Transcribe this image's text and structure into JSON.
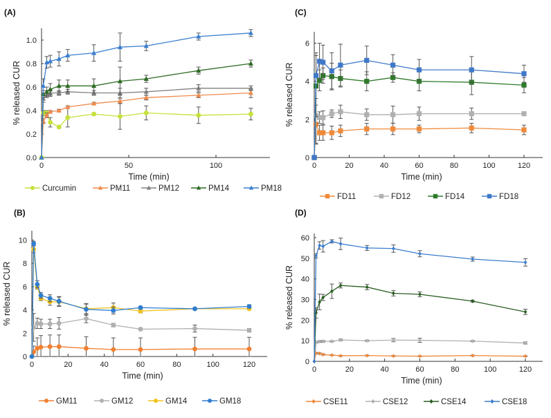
{
  "chart_data": [
    {
      "id": "A",
      "panel_label": "(A)",
      "type": "line",
      "xlabel": "Time (min)",
      "ylabel": "% released CUR",
      "xlim": [
        0,
        130
      ],
      "ylim": [
        0,
        1.1
      ],
      "xticks": [
        0,
        50,
        100
      ],
      "xtick_labels": [
        "0",
        "50",
        "100"
      ],
      "yticks": [
        0,
        0.2,
        0.4,
        0.6,
        0.8,
        1.0
      ],
      "ytick_labels": [
        "0.0",
        "0.2",
        "0.4",
        "0.6",
        "0.8",
        "1.0"
      ],
      "grid": false,
      "legend_position": "bottom",
      "x": [
        0,
        1,
        3,
        5,
        10,
        15,
        30,
        45,
        60,
        90,
        120
      ],
      "series": [
        {
          "name": "Curcumin",
          "color": "#c8e03a",
          "marker": "circle",
          "values": [
            0,
            0.38,
            0.38,
            0.3,
            0.26,
            0.34,
            0.37,
            0.35,
            0.38,
            0.36,
            0.37
          ],
          "errors": [
            0,
            0.02,
            0.02,
            0.04,
            0.01,
            0.08,
            0.01,
            0.11,
            0.06,
            0.07,
            0.05
          ]
        },
        {
          "name": "PM11",
          "color": "#f08a4b",
          "marker": "triangle",
          "values": [
            0,
            0.31,
            0.36,
            0.39,
            0.4,
            0.43,
            0.46,
            0.48,
            0.51,
            0.53,
            0.55
          ],
          "errors": [
            0,
            0.02,
            0.02,
            0.01,
            0.01,
            0.01,
            0.01,
            0.02,
            0.02,
            0.02,
            0.04
          ]
        },
        {
          "name": "PM12",
          "color": "#808080",
          "marker": "triangle",
          "values": [
            0,
            0.5,
            0.54,
            0.55,
            0.55,
            0.56,
            0.55,
            0.55,
            0.56,
            0.59,
            0.59
          ],
          "errors": [
            0,
            0.03,
            0.03,
            0.03,
            0.02,
            0.02,
            0.02,
            0.04,
            0.03,
            0.03,
            0.02
          ]
        },
        {
          "name": "PM14",
          "color": "#2e6b24",
          "marker": "triangle",
          "values": [
            0,
            0.54,
            0.56,
            0.58,
            0.61,
            0.61,
            0.61,
            0.65,
            0.67,
            0.74,
            0.8
          ],
          "errors": [
            0,
            0.03,
            0.04,
            0.05,
            0.05,
            0.05,
            0.06,
            0.12,
            0.03,
            0.03,
            0.03
          ]
        },
        {
          "name": "PM18",
          "color": "#3c7fd0",
          "marker": "triangle",
          "values": [
            0,
            0.61,
            0.81,
            0.82,
            0.84,
            0.87,
            0.89,
            0.94,
            0.95,
            1.03,
            1.06
          ],
          "errors": [
            0,
            0.06,
            0.05,
            0.05,
            0.06,
            0.05,
            0.07,
            0.12,
            0.04,
            0.03,
            0.03
          ]
        }
      ]
    },
    {
      "id": "C",
      "panel_label": "(C)",
      "type": "line",
      "xlabel": "Time (min)",
      "ylabel": "% released CUR",
      "xlim": [
        0,
        130
      ],
      "ylim": [
        0,
        6.6
      ],
      "xticks": [
        0,
        20,
        40,
        60,
        80,
        100,
        120
      ],
      "xtick_labels": [
        "0",
        "20",
        "40",
        "60",
        "80",
        "100",
        "120"
      ],
      "yticks": [
        0,
        2,
        4,
        6
      ],
      "ytick_labels": [
        "0",
        "2",
        "4",
        "6"
      ],
      "grid": false,
      "legend_position": "bottom",
      "x": [
        0,
        1,
        3,
        5,
        10,
        15,
        30,
        45,
        60,
        90,
        120
      ],
      "series": [
        {
          "name": "FD11",
          "color": "#f08a3a",
          "marker": "square",
          "values": [
            0,
            1.75,
            1.3,
            1.3,
            1.3,
            1.4,
            1.5,
            1.5,
            1.5,
            1.55,
            1.45
          ],
          "errors": [
            0,
            1.0,
            0.4,
            0.4,
            0.35,
            0.3,
            0.3,
            0.3,
            0.2,
            0.25,
            0.25
          ]
        },
        {
          "name": "FD12",
          "color": "#b0b0b0",
          "marker": "square",
          "values": [
            0,
            2.2,
            2.1,
            2.1,
            2.3,
            2.4,
            2.25,
            2.25,
            2.3,
            2.3,
            2.3
          ],
          "errors": [
            0,
            1.5,
            0.3,
            0.35,
            0.2,
            0.35,
            0.3,
            0.45,
            0.35,
            0.3,
            0.1
          ]
        },
        {
          "name": "FD14",
          "color": "#2e7a2a",
          "marker": "square",
          "values": [
            0,
            3.75,
            4.05,
            4.3,
            4.25,
            4.15,
            4.0,
            4.2,
            4.0,
            3.95,
            3.8
          ],
          "errors": [
            0,
            1.6,
            0.55,
            0.4,
            0.7,
            0.45,
            0.5,
            0.25,
            0.5,
            0.65,
            0.4
          ]
        },
        {
          "name": "FD18",
          "color": "#3f78c8",
          "marker": "square",
          "values": [
            0,
            4.3,
            5.05,
            5.0,
            4.55,
            4.85,
            5.1,
            4.85,
            4.6,
            4.6,
            4.4
          ],
          "errors": [
            0,
            1.2,
            0.95,
            0.9,
            0.95,
            1.1,
            0.75,
            0.55,
            0.55,
            0.7,
            0.45
          ]
        }
      ]
    },
    {
      "id": "B",
      "panel_label": "(B)",
      "type": "line",
      "xlabel": "Time (min)",
      "ylabel": "% released CUR",
      "xlim": [
        0,
        130
      ],
      "ylim": [
        0,
        10.8
      ],
      "xticks": [
        0,
        20,
        40,
        60,
        80,
        100,
        120
      ],
      "xtick_labels": [
        "0",
        "20",
        "40",
        "60",
        "80",
        "100",
        "120"
      ],
      "yticks": [
        0,
        2,
        4,
        6,
        8,
        10
      ],
      "ytick_labels": [
        "0",
        "2",
        "4",
        "6",
        "8",
        "10"
      ],
      "grid": false,
      "legend_position": "bottom",
      "x": [
        0,
        1,
        3,
        5,
        10,
        15,
        30,
        45,
        60,
        90,
        120
      ],
      "series": [
        {
          "name": "GM11",
          "color": "#f08030",
          "marker": "circle",
          "values": [
            0,
            0.4,
            0.7,
            0.8,
            0.85,
            0.85,
            0.7,
            0.6,
            0.6,
            0.65,
            0.65
          ],
          "errors": [
            0,
            0.5,
            0.9,
            1.0,
            1.0,
            1.0,
            1.0,
            1.0,
            1.0,
            1.0,
            1.0
          ]
        },
        {
          "name": "GM12",
          "color": "#b0b0b0",
          "marker": "circle",
          "values": [
            0,
            2.5,
            2.85,
            2.8,
            2.8,
            2.85,
            3.25,
            2.7,
            2.35,
            2.4,
            2.25
          ],
          "errors": [
            0,
            1.2,
            0.45,
            0.4,
            0.4,
            0.5,
            0.35,
            0.15,
            0.1,
            0.3,
            0.15
          ]
        },
        {
          "name": "GM14",
          "color": "#f2c21a",
          "marker": "circle",
          "values": [
            0,
            9.2,
            6.0,
            5.0,
            4.7,
            4.7,
            4.1,
            4.2,
            3.9,
            4.1,
            4.1
          ],
          "errors": [
            0,
            0.3,
            0.2,
            0.2,
            0.3,
            0.4,
            0.4,
            0.4,
            0.15,
            0.1,
            0.1
          ]
        },
        {
          "name": "GM18",
          "color": "#2f7dd0",
          "marker": "circle",
          "values": [
            0,
            9.7,
            6.2,
            5.25,
            5.0,
            4.75,
            4.05,
            3.95,
            4.2,
            4.1,
            4.3
          ],
          "errors": [
            0,
            0.2,
            0.3,
            0.25,
            0.3,
            0.4,
            0.5,
            0.3,
            0.1,
            0.1,
            0.15
          ]
        }
      ]
    },
    {
      "id": "D",
      "panel_label": "(D)",
      "type": "line",
      "xlabel": "Time (min)",
      "ylabel": "% released CUR",
      "xlim": [
        0,
        130
      ],
      "ylim": [
        0,
        62
      ],
      "xticks": [
        0,
        20,
        40,
        60,
        80,
        100,
        120
      ],
      "xtick_labels": [
        "0",
        "20",
        "40",
        "60",
        "80",
        "100",
        "120"
      ],
      "yticks": [
        0,
        10,
        20,
        30,
        40,
        50,
        60
      ],
      "ytick_labels": [
        "0",
        "10",
        "20",
        "30",
        "40",
        "50",
        "60"
      ],
      "grid": false,
      "legend_position": "bottom",
      "x": [
        0,
        1,
        3,
        5,
        10,
        15,
        30,
        45,
        60,
        90,
        120
      ],
      "series": [
        {
          "name": "CSE11",
          "color": "#f0883a",
          "marker": "diamond",
          "values": [
            0,
            4.0,
            3.8,
            3.3,
            3.0,
            2.7,
            2.8,
            2.6,
            2.5,
            2.8,
            2.5
          ],
          "errors": [
            0,
            0.3,
            0.3,
            0.3,
            0.2,
            0.2,
            0.2,
            0.2,
            0.2,
            0.2,
            0.2
          ]
        },
        {
          "name": "CSE12",
          "color": "#b0b0b0",
          "marker": "diamond",
          "values": [
            0,
            9.2,
            9.6,
            9.7,
            9.7,
            10.4,
            10.0,
            10.3,
            10.2,
            9.8,
            8.9
          ],
          "errors": [
            0,
            0.3,
            0.4,
            0.4,
            0.3,
            0.4,
            0.3,
            0.8,
            1.0,
            0.3,
            0.5
          ]
        },
        {
          "name": "CSE14",
          "color": "#2a5e22",
          "marker": "diamond",
          "values": [
            0,
            23.5,
            28.8,
            31.0,
            34.0,
            36.8,
            36.0,
            33.0,
            32.5,
            29.2,
            24.0
          ],
          "errors": [
            0,
            2.5,
            3.8,
            1.5,
            3.5,
            1.2,
            1.3,
            1.3,
            1.2,
            0.5,
            1.3
          ]
        },
        {
          "name": "CSE18",
          "color": "#3a7ccc",
          "marker": "diamond",
          "values": [
            0,
            51.2,
            56.2,
            55.8,
            58.2,
            57.0,
            55.0,
            54.7,
            52.2,
            49.6,
            48.0
          ],
          "errors": [
            0,
            1.0,
            1.8,
            2.8,
            0.8,
            2.8,
            1.2,
            1.8,
            1.5,
            1.0,
            1.8
          ]
        }
      ]
    }
  ]
}
